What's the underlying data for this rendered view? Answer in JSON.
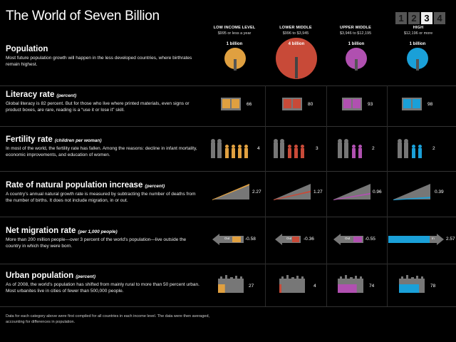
{
  "title": "The World of Seven Billion",
  "pager": [
    "1",
    "2",
    "3",
    "4"
  ],
  "pager_active": "3",
  "columns": [
    {
      "title": "LOW INCOME LEVEL",
      "range": "$995 or less a year",
      "color": "#e0a040"
    },
    {
      "title": "LOWER MIDDLE",
      "range": "$996 to $3,945",
      "color": "#c84a38"
    },
    {
      "title": "UPPER MIDDLE",
      "range": "$3,946 to $12,195",
      "color": "#b050b0"
    },
    {
      "title": "HIGH",
      "range": "$12,196 or more",
      "color": "#1aa0d8"
    }
  ],
  "population": {
    "heading": "Population",
    "text": "Most future population growth will happen in the less developed countries, where birthrates remain highest.",
    "labels": [
      "1 billion",
      "4 billion",
      "1 billion",
      "1 billion"
    ],
    "billions": [
      1,
      4,
      1,
      1
    ]
  },
  "literacy": {
    "heading": "Literacy rate",
    "unit": "(percent)",
    "text": "Global literacy is 82 percent. But for those who live where printed materials, even signs or product boxes, are rare, reading is a “use it or lose it” skill.",
    "values": [
      "66",
      "80",
      "93",
      "98"
    ]
  },
  "fertility": {
    "heading": "Fertility rate",
    "unit": "(children per woman)",
    "text": "In most of the world, the fertility rate has fallen. Among the reasons: decline in infant mortality, economic improvements, and education of women.",
    "values": [
      "4",
      "3",
      "2",
      "2"
    ]
  },
  "increase": {
    "heading": "Rate of natural population increase",
    "unit": "(percent)",
    "text": "A country’s annual natural growth rate is measured by subtracting the number of deaths from the number of births. It does not include migration, in or out.",
    "values": [
      "2.27",
      "1.27",
      "0.96",
      "0.39"
    ],
    "numbers": [
      2.27,
      1.27,
      0.96,
      0.39
    ]
  },
  "migration": {
    "heading": "Net migration rate",
    "unit": "(per 1,000 people)",
    "text": "More than 200 million people—over 3 percent of the world’s population—live outside the country in which they were born.",
    "values": [
      "-0.58",
      "-0.36",
      "-0.55",
      "2.57"
    ],
    "out_label": "Out",
    "in_label": "In"
  },
  "urban": {
    "heading": "Urban population",
    "unit": "(percent)",
    "text": "As of 2008, the world’s population has shifted from mainly rural to more than 50 percent urban. Most urbanites live in cities of fewer than 500,000 people.",
    "values": [
      "27",
      "4",
      "74",
      "78"
    ],
    "numbers": [
      27,
      4,
      74,
      78
    ]
  },
  "footnote": "Data for each category above were first compiled for all countries in each income level. The data were then averaged, accounting for differences in population."
}
